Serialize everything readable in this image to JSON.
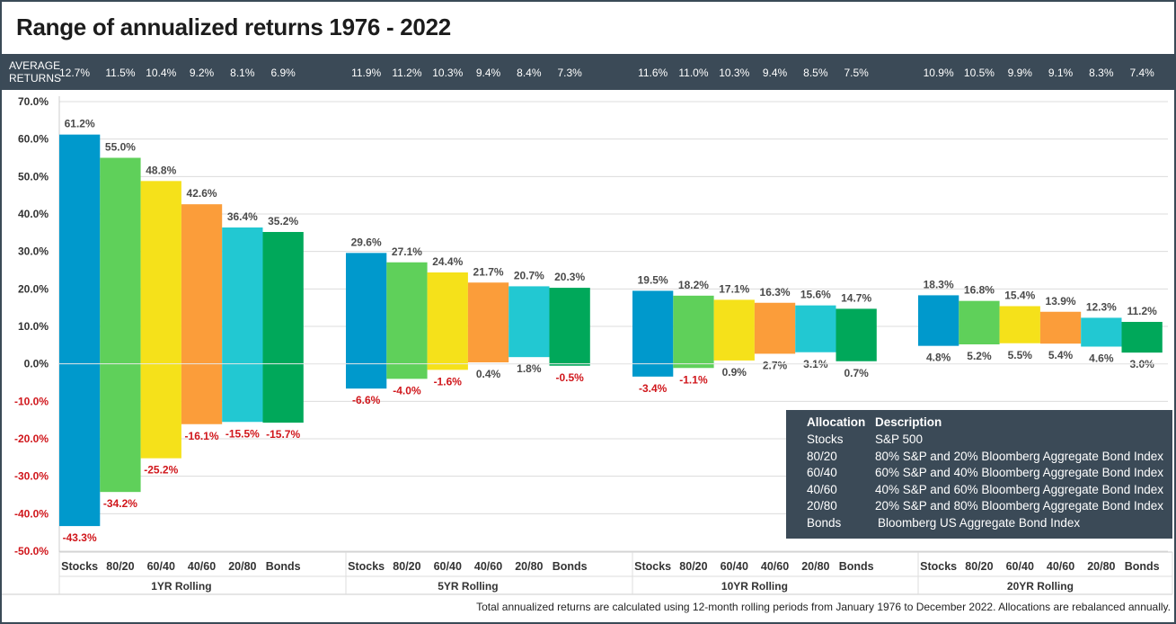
{
  "title": "Range of annualized returns 1976 - 2022",
  "avg_label_line1": "AVERAGE",
  "avg_label_line2": "RETURNS",
  "colors": {
    "Stocks": "#0099cc",
    "80/20": "#5fd05a",
    "60/40": "#f5e11a",
    "40/60": "#fb9d3a",
    "20/80": "#22c8d2",
    "Bonds": "#00a85a",
    "negative_label": "#d0161b",
    "header_bg": "#3b4a57"
  },
  "chart_data": {
    "type": "bar",
    "subtype": "floating range bars",
    "title": "Range of annualized returns 1976 - 2022",
    "ylim": [
      -50,
      70
    ],
    "y_ticks": [
      "70.0%",
      "60.0%",
      "50.0%",
      "40.0%",
      "30.0%",
      "20.0%",
      "10.0%",
      "0.0%",
      "-10.0%",
      "-20.0%",
      "-30.0%",
      "-40.0%",
      "-50.0%"
    ],
    "grid": true,
    "allocations": [
      "Stocks",
      "80/20",
      "60/40",
      "40/60",
      "20/80",
      "Bonds"
    ],
    "groups": [
      {
        "name": "1YR Rolling",
        "average": [
          "12.7%",
          "11.5%",
          "10.4%",
          "9.2%",
          "8.1%",
          "6.9%"
        ],
        "high": [
          61.2,
          55.0,
          48.8,
          42.6,
          36.4,
          35.2
        ],
        "low": [
          -43.3,
          -34.2,
          -25.2,
          -16.1,
          -15.5,
          -15.7
        ],
        "high_labels": [
          "61.2%",
          "55.0%",
          "48.8%",
          "42.6%",
          "36.4%",
          "35.2%"
        ],
        "low_labels": [
          "-43.3%",
          "-34.2%",
          "-25.2%",
          "-16.1%",
          "-15.5%",
          "-15.7%"
        ]
      },
      {
        "name": "5YR Rolling",
        "average": [
          "11.9%",
          "11.2%",
          "10.3%",
          "9.4%",
          "8.4%",
          "7.3%"
        ],
        "high": [
          29.6,
          27.1,
          24.4,
          21.7,
          20.7,
          20.3
        ],
        "low": [
          -6.6,
          -4.0,
          -1.6,
          0.4,
          1.8,
          -0.5
        ],
        "high_labels": [
          "29.6%",
          "27.1%",
          "24.4%",
          "21.7%",
          "20.7%",
          "20.3%"
        ],
        "low_labels": [
          "-6.6%",
          "-4.0%",
          "-1.6%",
          "0.4%",
          "1.8%",
          "-0.5%"
        ]
      },
      {
        "name": "10YR Rolling",
        "average": [
          "11.6%",
          "11.0%",
          "10.3%",
          "9.4%",
          "8.5%",
          "7.5%"
        ],
        "high": [
          19.5,
          18.2,
          17.1,
          16.3,
          15.6,
          14.7
        ],
        "low": [
          -3.4,
          -1.1,
          0.9,
          2.7,
          3.1,
          0.7
        ],
        "high_labels": [
          "19.5%",
          "18.2%",
          "17.1%",
          "16.3%",
          "15.6%",
          "14.7%"
        ],
        "low_labels": [
          "-3.4%",
          "-1.1%",
          "0.9%",
          "2.7%",
          "3.1%",
          "0.7%"
        ]
      },
      {
        "name": "20YR Rolling",
        "average": [
          "10.9%",
          "10.5%",
          "9.9%",
          "9.1%",
          "8.3%",
          "7.4%"
        ],
        "high": [
          18.3,
          16.8,
          15.4,
          13.9,
          12.3,
          11.2
        ],
        "low": [
          4.8,
          5.2,
          5.5,
          5.4,
          4.6,
          3.0
        ],
        "high_labels": [
          "18.3%",
          "16.8%",
          "15.4%",
          "13.9%",
          "12.3%",
          "11.2%"
        ],
        "low_labels": [
          "4.8%",
          "5.2%",
          "5.5%",
          "5.4%",
          "4.6%",
          "3.0%"
        ]
      }
    ]
  },
  "legend": {
    "header_alloc": "Allocation",
    "header_desc": "Description",
    "rows": [
      {
        "alloc": "Stocks",
        "desc": "S&P 500"
      },
      {
        "alloc": "80/20",
        "desc": "80% S&P and 20% Bloomberg Aggregate Bond Index"
      },
      {
        "alloc": "60/40",
        "desc": "60% S&P and 40% Bloomberg Aggregate Bond Index"
      },
      {
        "alloc": "40/60",
        "desc": "40% S&P and 60% Bloomberg Aggregate Bond Index"
      },
      {
        "alloc": "20/80",
        "desc": "20% S&P and 80% Bloomberg Aggregate Bond Index"
      },
      {
        "alloc": "Bonds",
        "desc": "Bloomberg US Aggregate Bond Index"
      }
    ]
  },
  "footnote": "Total annualized returns are calculated using 12-month rolling periods from January 1976 to December 2022. Allocations are rebalanced annually."
}
